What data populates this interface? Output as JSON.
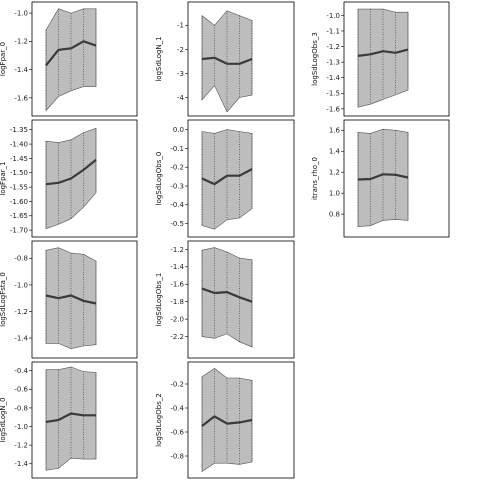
{
  "colors": {
    "band": "#bdbdbd",
    "band_edge": "#555555",
    "line": "#3a3a3a",
    "frame": "#000000",
    "dotted": "#333333"
  },
  "chart_data": [
    {
      "type": "area",
      "ylabel": "logFpar_0",
      "x": [
        0,
        1,
        2,
        3,
        4
      ],
      "ylim": [
        -1.7,
        -0.95
      ],
      "yticks": [
        -1.0,
        -1.2,
        -1.4,
        -1.6
      ],
      "tick_labels": [
        "-1.0",
        "-1.2",
        "-1.4",
        "-1.6"
      ],
      "series": [
        {
          "role": "mean",
          "values": [
            -1.37,
            -1.26,
            -1.25,
            -1.2,
            -1.23
          ]
        },
        {
          "role": "upper",
          "values": [
            -1.12,
            -0.97,
            -1.0,
            -0.97,
            -0.97
          ]
        },
        {
          "role": "lower",
          "values": [
            -1.69,
            -1.59,
            -1.55,
            -1.52,
            -1.52
          ]
        }
      ]
    },
    {
      "type": "area",
      "ylabel": "logSdLogN_1",
      "x": [
        0,
        1,
        2,
        3,
        4
      ],
      "ylim": [
        -4.6,
        -0.2
      ],
      "yticks": [
        -1,
        -2,
        -3,
        -4
      ],
      "tick_labels": [
        "-1",
        "-2",
        "-3",
        "-4"
      ],
      "series": [
        {
          "role": "mean",
          "values": [
            -2.4,
            -2.35,
            -2.6,
            -2.6,
            -2.4
          ]
        },
        {
          "role": "upper",
          "values": [
            -0.6,
            -1.0,
            -0.4,
            -0.6,
            -0.8
          ]
        },
        {
          "role": "lower",
          "values": [
            -4.1,
            -3.5,
            -4.6,
            -4.0,
            -3.9
          ]
        }
      ]
    },
    {
      "type": "area",
      "ylabel": "logSdLogObs_3",
      "x": [
        0,
        1,
        2,
        3,
        4
      ],
      "ylim": [
        -1.62,
        -0.94
      ],
      "yticks": [
        -1.0,
        -1.1,
        -1.2,
        -1.3,
        -1.4,
        -1.5,
        -1.6
      ],
      "tick_labels": [
        "-1.0",
        "-1.1",
        "-1.2",
        "-1.3",
        "-1.4",
        "-1.5",
        "-1.6"
      ],
      "series": [
        {
          "role": "mean",
          "values": [
            -1.26,
            -1.25,
            -1.23,
            -1.24,
            -1.22
          ]
        },
        {
          "role": "upper",
          "values": [
            -0.96,
            -0.96,
            -0.96,
            -0.98,
            -0.98
          ]
        },
        {
          "role": "lower",
          "values": [
            -1.59,
            -1.57,
            -1.54,
            -1.51,
            -1.48
          ]
        }
      ]
    },
    {
      "type": "area",
      "ylabel": "logFpar_1",
      "x": [
        0,
        1,
        2,
        3,
        4
      ],
      "ylim": [
        -1.71,
        -1.33
      ],
      "yticks": [
        -1.35,
        -1.4,
        -1.45,
        -1.5,
        -1.55,
        -1.6,
        -1.65,
        -1.7
      ],
      "tick_labels": [
        "-1.35",
        "-1.40",
        "-1.45",
        "-1.50",
        "-1.55",
        "-1.60",
        "-1.65",
        "-1.70"
      ],
      "series": [
        {
          "role": "mean",
          "values": [
            -1.54,
            -1.535,
            -1.52,
            -1.49,
            -1.455
          ]
        },
        {
          "role": "upper",
          "values": [
            -1.39,
            -1.395,
            -1.385,
            -1.36,
            -1.345
          ]
        },
        {
          "role": "lower",
          "values": [
            -1.695,
            -1.68,
            -1.66,
            -1.62,
            -1.57
          ]
        }
      ]
    },
    {
      "type": "area",
      "ylabel": "logSdLogObs_0",
      "x": [
        0,
        1,
        2,
        3,
        4
      ],
      "ylim": [
        -0.55,
        0.03
      ],
      "yticks": [
        0.0,
        -0.1,
        -0.2,
        -0.3,
        -0.4,
        -0.5
      ],
      "tick_labels": [
        "0.0",
        "-0.1",
        "-0.2",
        "-0.3",
        "-0.4",
        "-0.5"
      ],
      "series": [
        {
          "role": "mean",
          "values": [
            -0.26,
            -0.29,
            -0.245,
            -0.245,
            -0.21
          ]
        },
        {
          "role": "upper",
          "values": [
            -0.01,
            -0.02,
            0.0,
            -0.01,
            -0.02
          ]
        },
        {
          "role": "lower",
          "values": [
            -0.51,
            -0.53,
            -0.48,
            -0.47,
            -0.42
          ]
        }
      ]
    },
    {
      "type": "area",
      "ylabel": "itrans_rho_0",
      "x": [
        0,
        1,
        2,
        3,
        4
      ],
      "ylim": [
        0.62,
        1.66
      ],
      "yticks": [
        1.6,
        1.4,
        1.2,
        1.0,
        0.8
      ],
      "tick_labels": [
        "1.6",
        "1.4",
        "1.2",
        "1.0",
        "0.8"
      ],
      "series": [
        {
          "role": "mean",
          "values": [
            1.13,
            1.135,
            1.18,
            1.175,
            1.15
          ]
        },
        {
          "role": "upper",
          "values": [
            1.58,
            1.57,
            1.61,
            1.6,
            1.58
          ]
        },
        {
          "role": "lower",
          "values": [
            0.68,
            0.69,
            0.74,
            0.75,
            0.74
          ]
        }
      ]
    },
    {
      "type": "area",
      "ylabel": "logSdLogFsta_0",
      "x": [
        0,
        1,
        2,
        3,
        4
      ],
      "ylim": [
        -1.52,
        -0.7
      ],
      "yticks": [
        -0.8,
        -1.0,
        -1.2,
        -1.4
      ],
      "tick_labels": [
        "-0.8",
        "-1.0",
        "-1.2",
        "-1.4"
      ],
      "series": [
        {
          "role": "mean",
          "values": [
            -1.08,
            -1.1,
            -1.08,
            -1.12,
            -1.14
          ]
        },
        {
          "role": "upper",
          "values": [
            -0.74,
            -0.72,
            -0.76,
            -0.77,
            -0.82
          ]
        },
        {
          "role": "lower",
          "values": [
            -1.44,
            -1.44,
            -1.48,
            -1.46,
            -1.45
          ]
        }
      ]
    },
    {
      "type": "area",
      "ylabel": "logSdLogObs_1",
      "x": [
        0,
        1,
        2,
        3,
        4
      ],
      "ylim": [
        -2.4,
        -1.15
      ],
      "yticks": [
        -1.2,
        -1.4,
        -1.6,
        -1.8,
        -2.0,
        -2.2
      ],
      "tick_labels": [
        "-1.2",
        "-1.4",
        "-1.6",
        "-1.8",
        "-2.0",
        "-2.2"
      ],
      "series": [
        {
          "role": "mean",
          "values": [
            -1.65,
            -1.7,
            -1.69,
            -1.75,
            -1.8
          ]
        },
        {
          "role": "upper",
          "values": [
            -1.21,
            -1.18,
            -1.23,
            -1.3,
            -1.32
          ]
        },
        {
          "role": "lower",
          "values": [
            -2.2,
            -2.22,
            -2.17,
            -2.26,
            -2.32
          ]
        }
      ]
    },
    {
      "type": "area",
      "ylabel": "logSdLogN_0",
      "x": [
        0,
        1,
        2,
        3,
        4
      ],
      "ylim": [
        -1.51,
        -0.35
      ],
      "yticks": [
        -0.4,
        -0.6,
        -0.8,
        -1.0,
        -1.2,
        -1.4
      ],
      "tick_labels": [
        "-0.4",
        "-0.6",
        "-0.8",
        "-1.0",
        "-1.2",
        "-1.4"
      ],
      "series": [
        {
          "role": "mean",
          "values": [
            -0.95,
            -0.93,
            -0.86,
            -0.88,
            -0.88
          ]
        },
        {
          "role": "upper",
          "values": [
            -0.39,
            -0.39,
            -0.36,
            -0.41,
            -0.42
          ]
        },
        {
          "role": "lower",
          "values": [
            -1.47,
            -1.45,
            -1.34,
            -1.35,
            -1.35
          ]
        }
      ]
    },
    {
      "type": "area",
      "ylabel": "logSdLogObs_2",
      "x": [
        0,
        1,
        2,
        3,
        4
      ],
      "ylim": [
        -0.95,
        -0.05
      ],
      "yticks": [
        -0.2,
        -0.4,
        -0.6,
        -0.8
      ],
      "tick_labels": [
        "-0.2",
        "-0.4",
        "-0.6",
        "-0.8"
      ],
      "series": [
        {
          "role": "mean",
          "values": [
            -0.55,
            -0.47,
            -0.53,
            -0.52,
            -0.5
          ]
        },
        {
          "role": "upper",
          "values": [
            -0.14,
            -0.07,
            -0.15,
            -0.15,
            -0.17
          ]
        },
        {
          "role": "lower",
          "values": [
            -0.93,
            -0.86,
            -0.86,
            -0.87,
            -0.85
          ]
        }
      ]
    }
  ]
}
